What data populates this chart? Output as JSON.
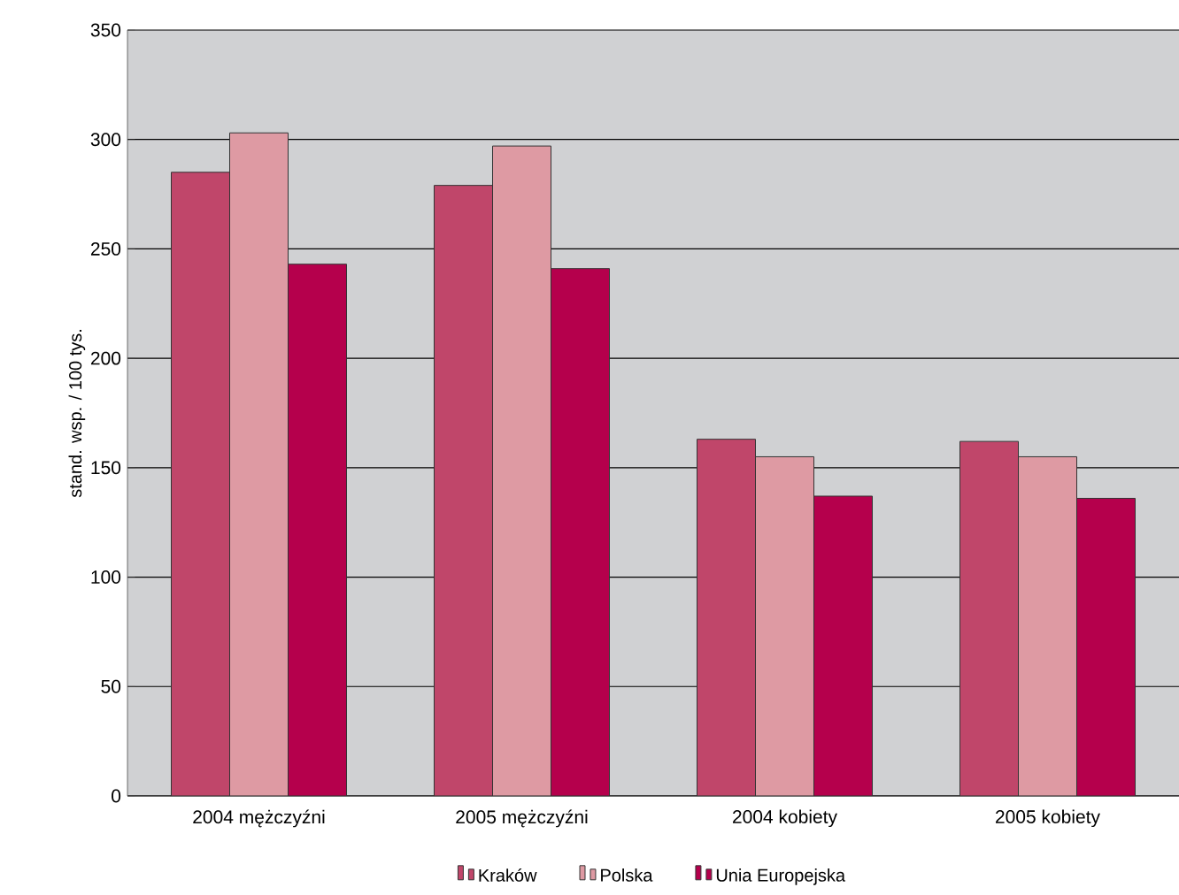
{
  "chart_data": {
    "type": "bar",
    "categories": [
      "2004 mężczyźni",
      "2005 mężczyźni",
      "2004 kobiety",
      "2005 kobiety"
    ],
    "series": [
      {
        "name": "Kraków",
        "color": "#c0466a",
        "values": [
          285,
          279,
          163,
          162
        ]
      },
      {
        "name": "Polska",
        "color": "#de9aa3",
        "values": [
          303,
          297,
          155,
          155
        ]
      },
      {
        "name": "Unia Europejska",
        "color": "#b5004c",
        "values": [
          243,
          241,
          137,
          136
        ]
      }
    ],
    "ylabel": "stand. wsp. / 100 tys.",
    "ylim": [
      0,
      350
    ],
    "yticks": [
      0,
      50,
      100,
      150,
      200,
      250,
      300,
      350
    ],
    "grid": "y",
    "legend": "bottom"
  }
}
